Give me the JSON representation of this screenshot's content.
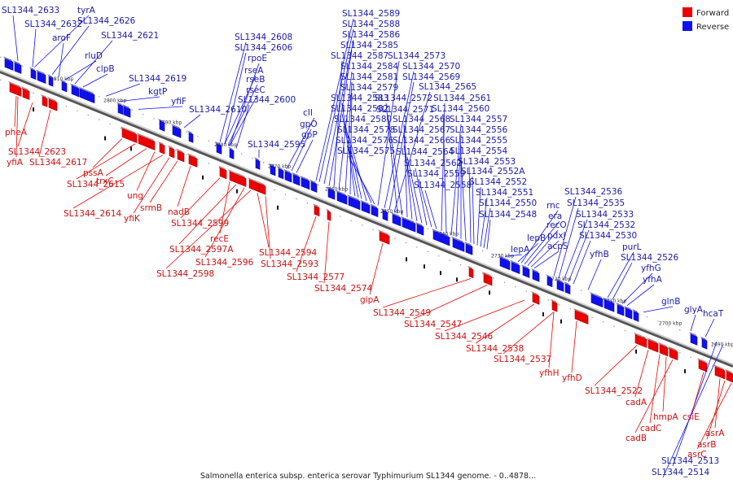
{
  "caption": "Salmonella enterica subsp. enterica serovar Typhimurium SL1344 genome. - 0..4878...",
  "legend": [
    {
      "label": "Forward",
      "color": "#ee0000"
    },
    {
      "label": "Reverse",
      "color": "#1010ee"
    }
  ],
  "ticks": [
    "2810 kbp",
    "2800 kbp",
    "2790 kbp",
    "2780 kbp",
    "2770 kbp",
    "2760 kbp",
    "2750 kbp",
    "2740 kbp",
    "2730 kbp",
    "2720 kbp",
    "2710 kbp",
    "2700 kbp",
    "2690 kbp"
  ],
  "reverse_labels": [
    "SL1344_2633",
    "SL1344_2632",
    "tyrA",
    "SL1344_2626",
    "aroF",
    "SL1344_2621",
    "rluD",
    "clpB",
    "SL1344_2619",
    "kgtP",
    "yfiF",
    "SL1344_2608",
    "SL1344_2606",
    "rpoE",
    "rseA",
    "rseB",
    "rseC",
    "SL1344_2610",
    "SL1344_2600",
    "SL1344_2595",
    "cII",
    "gpO",
    "gpP",
    "SL1344_2589",
    "SL1344_2588",
    "SL1344_2586",
    "SL1344_2585",
    "SL1344_2587",
    "SL1344_2584",
    "SL1344_2581",
    "SL1344_2579",
    "SL1344_2583",
    "SL1344_2582",
    "SL1344_2580",
    "SL1344_2578",
    "SL1344_2576",
    "SL1344_2575",
    "SL1344_2573",
    "SL1344_2570",
    "SL1344_2569",
    "SL1344_2565",
    "SL1344_2572",
    "SL1344_2571",
    "SL1344_2568",
    "SL1344_2567",
    "SL1344_2566",
    "SL1344_2564",
    "SL1344_2562",
    "SL1344_2559",
    "SL1344_2558",
    "SL1344_2561",
    "SL1344_2560",
    "SL1344_2557",
    "SL1344_2556",
    "SL1344_2555",
    "SL1344_2554",
    "SL1344_2553",
    "SL1344_2552A",
    "SL1344_2552",
    "SL1344_2551",
    "SL1344_2550",
    "SL1344_2548",
    "rnc",
    "era",
    "recO",
    "pdxJ",
    "acpS",
    "lepB",
    "lepA",
    "SL1344_2536",
    "SL1344_2535",
    "SL1344_2533",
    "SL1344_2532",
    "SL1344_2530",
    "yfhB",
    "purL",
    "SL1344_2526",
    "yfhG",
    "yfhA",
    "glnB",
    "glyA",
    "hcaT",
    "SL1344_2513",
    "SL1344_2514"
  ],
  "forward_labels": [
    "pheA",
    "SL1344_2623",
    "yfiA",
    "SL1344_2617",
    "pssA",
    "SL1344_2615",
    "trxC",
    "ung",
    "SL1344_2614",
    "yfiK",
    "srmB",
    "nadB",
    "SL1344_2599",
    "recE",
    "SL1344_2597A",
    "SL1344_2596",
    "SL1344_2598",
    "SL1344_2594",
    "SL1344_2593",
    "SL1344_2577",
    "SL1344_2574",
    "gipA",
    "SL1344_2549",
    "SL1344_2547",
    "SL1344_2546",
    "SL1344_2538",
    "SL1344_2537",
    "yfhH",
    "yfhD",
    "SL1344_2522",
    "cadA",
    "hmpA",
    "cadC",
    "cadB",
    "csiE",
    "asrA",
    "asrB",
    "asrC"
  ]
}
